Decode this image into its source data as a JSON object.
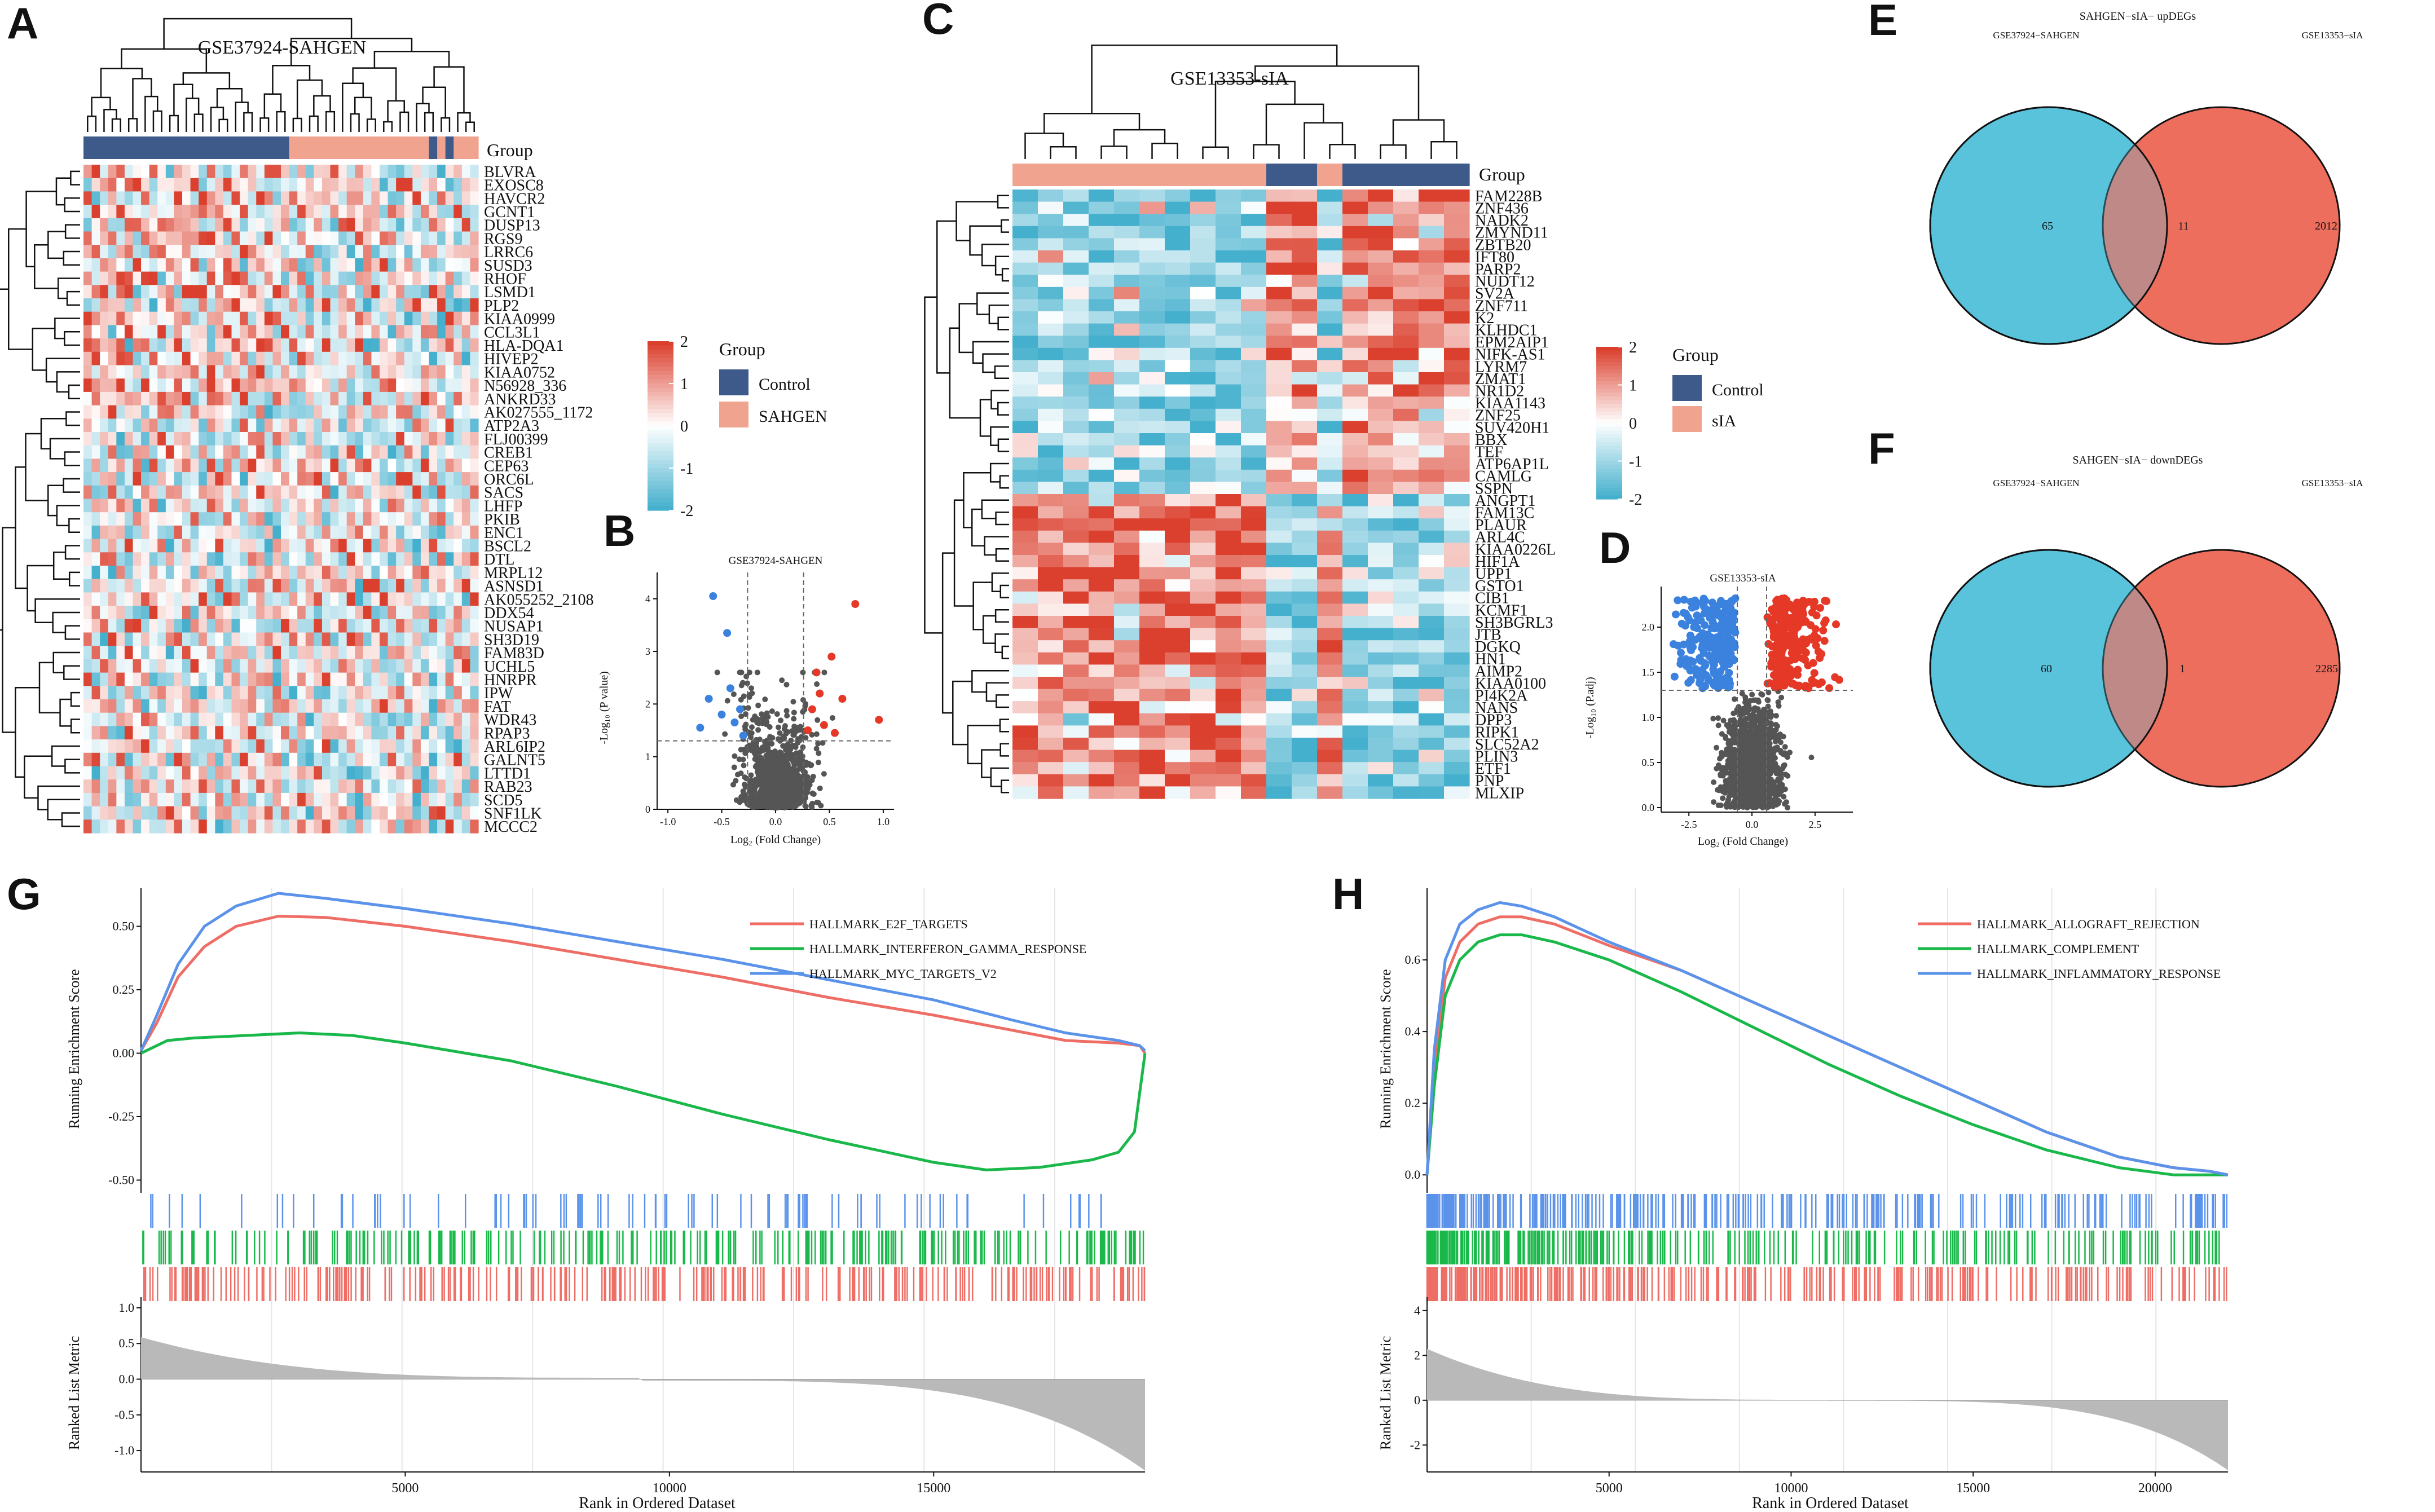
{
  "panels": {
    "A": "A",
    "B": "B",
    "C": "C",
    "D": "D",
    "E": "E",
    "F": "F",
    "G": "G",
    "H": "H"
  },
  "legend_group_title": "Group",
  "chart_data": [
    {
      "id": "A",
      "type": "heatmap",
      "title": "GSE37924-SAHGEN",
      "annotation_label": "Group",
      "columns": 48,
      "group_bar": [
        "Control",
        "Control",
        "Control",
        "Control",
        "Control",
        "Control",
        "Control",
        "Control",
        "Control",
        "Control",
        "Control",
        "Control",
        "Control",
        "Control",
        "Control",
        "Control",
        "Control",
        "Control",
        "Control",
        "Control",
        "Control",
        "Control",
        "Control",
        "Control",
        "Control",
        "SAHGEN",
        "SAHGEN",
        "SAHGEN",
        "SAHGEN",
        "SAHGEN",
        "SAHGEN",
        "SAHGEN",
        "SAHGEN",
        "SAHGEN",
        "SAHGEN",
        "SAHGEN",
        "SAHGEN",
        "SAHGEN",
        "SAHGEN",
        "SAHGEN",
        "SAHGEN",
        "SAHGEN",
        "Control",
        "SAHGEN",
        "Control",
        "SAHGEN",
        "SAHGEN",
        "SAHGEN"
      ],
      "rows": [
        "BLVRA",
        "EXOSC8",
        "HAVCR2",
        "GCNT1",
        "DUSP13",
        "RGS9",
        "LRRC6",
        "SUSD3",
        "RHOF",
        "LSMD1",
        "PLP2",
        "KIAA0999",
        "CCL3L1",
        "HLA-DQA1",
        "HIVEP2",
        "KIAA0752",
        "N56928_336",
        "ANKRD33",
        "AK027555_1172",
        "ATP2A3",
        "FLJ00399",
        "CREB1",
        "CEP63",
        "ORC6L",
        "SACS",
        "LHFP",
        "PKIB",
        "ENC1",
        "BSCL2",
        "DTL",
        "MRPL12",
        "ASNSD1",
        "AK055252_2108",
        "DDX54",
        "NUSAP1",
        "SH3D19",
        "FAM83D",
        "UCHL5",
        "HNRPR",
        "IPW",
        "FAT",
        "WDR43",
        "RPAP3",
        "ARL6IP2",
        "GALNT5",
        "LTTD1",
        "RAB23",
        "SCD5",
        "SNF1LK",
        "MCCC2"
      ],
      "legend_scale": {
        "min": -2,
        "max": 2,
        "ticks": [
          "2",
          "1",
          "0",
          "-1",
          "-2"
        ]
      },
      "legend_groups": [
        {
          "name": "Control",
          "color": "#3d5a8a"
        },
        {
          "name": "SAHGEN",
          "color": "#f0a490"
        }
      ]
    },
    {
      "id": "B",
      "type": "scatter",
      "title": "GSE37924-SAHGEN",
      "xlabel": "Log₂ (Fold Change)",
      "ylabel": "-Log₁₀ (P value)",
      "xlim": [
        -1.1,
        1.1
      ],
      "ylim": [
        0,
        4.5
      ],
      "x_ticks": [
        "-1.0",
        "-0.5",
        "0.0",
        "0.5",
        "1.0"
      ],
      "y_ticks": [
        "0",
        "1",
        "2",
        "3",
        "4"
      ],
      "cutoffs": {
        "x": [
          -0.26,
          0.26
        ],
        "y": 1.3
      },
      "highlight_up": [
        {
          "x": 0.74,
          "y": 3.9
        },
        {
          "x": 0.52,
          "y": 2.9
        },
        {
          "x": 0.38,
          "y": 2.6
        },
        {
          "x": 0.62,
          "y": 2.1
        },
        {
          "x": 0.96,
          "y": 1.7
        },
        {
          "x": 0.45,
          "y": 1.6
        },
        {
          "x": 0.3,
          "y": 1.5
        },
        {
          "x": 0.55,
          "y": 1.45
        },
        {
          "x": 0.34,
          "y": 1.9
        },
        {
          "x": 0.41,
          "y": 2.2
        }
      ],
      "highlight_down": [
        {
          "x": -0.58,
          "y": 4.05
        },
        {
          "x": -0.45,
          "y": 3.35
        },
        {
          "x": -0.62,
          "y": 2.1
        },
        {
          "x": -0.5,
          "y": 1.8
        },
        {
          "x": -0.38,
          "y": 1.65
        },
        {
          "x": -0.33,
          "y": 1.9
        },
        {
          "x": -0.7,
          "y": 1.55
        },
        {
          "x": -0.42,
          "y": 2.3
        },
        {
          "x": -0.3,
          "y": 1.4
        }
      ]
    },
    {
      "id": "C",
      "type": "heatmap",
      "title": "GSE13353-sIA",
      "annotation_label": "Group",
      "columns": 18,
      "group_bar": [
        "sIA",
        "sIA",
        "sIA",
        "sIA",
        "sIA",
        "sIA",
        "sIA",
        "sIA",
        "sIA",
        "sIA",
        "Control",
        "Control",
        "sIA",
        "Control",
        "Control",
        "Control",
        "Control",
        "Control"
      ],
      "rows": [
        "FAM228B",
        "ZNF436",
        "NADK2",
        "ZMYND11",
        "ZBTB20",
        "IFT80",
        "PARP2",
        "NUDT12",
        "SV2A",
        "ZNF711",
        "K2",
        "KLHDC1",
        "EPM2AIP1",
        "NIFK-AS1",
        "LYRM7",
        "ZMAT1",
        "NR1D2",
        "KIAA1143",
        "ZNF25",
        "SUV420H1",
        "BBX",
        "TEF",
        "ATP6AP1L",
        "CAMLG",
        "SSPN",
        "ANGPT1",
        "FAM13C",
        "PLAUR",
        "ARL4C",
        "KIAA0226L",
        "HIF1A",
        "UPP1",
        "GSTO1",
        "CIB1",
        "KCMF1",
        "SH3BGRL3",
        "JTB",
        "DGKQ",
        "HN1",
        "AIMP2",
        "KIAA0100",
        "PI4K2A",
        "NANS",
        "DPP3",
        "RIPK1",
        "SLC52A2",
        "PLIN3",
        "ETF1",
        "PNP",
        "MLXIP"
      ],
      "legend_scale": {
        "min": -2,
        "max": 2,
        "ticks": [
          "2",
          "1",
          "0",
          "-1",
          "-2"
        ]
      },
      "legend_groups": [
        {
          "name": "Control",
          "color": "#3d5a8a"
        },
        {
          "name": "sIA",
          "color": "#f0a490"
        }
      ]
    },
    {
      "id": "D",
      "type": "scatter",
      "title": "GSE13353-sIA",
      "xlabel": "Log₂ (Fold Change)",
      "ylabel": "-Log₁₀ (P.adj)",
      "xlim": [
        -3.6,
        4.0
      ],
      "ylim": [
        -0.05,
        2.45
      ],
      "x_ticks": [
        "-2.5",
        "0.0",
        "2.5"
      ],
      "x_tick_values": [
        -2.5,
        0,
        2.5
      ],
      "y_ticks": [
        "0.0",
        "0.5",
        "1.0",
        "1.5",
        "2.0"
      ],
      "cutoffs": {
        "x": [
          -0.58,
          0.58
        ],
        "y": 1.3
      }
    },
    {
      "id": "E",
      "type": "venn",
      "title": "SAHGEN−sIA− upDEGs",
      "left_label": "GSE37924−SAHGEN",
      "right_label": "GSE13353−sIA",
      "left_only": "65",
      "overlap": "11",
      "right_only": "2012",
      "left_color": "#5bc3dc",
      "right_color": "#ee6e5e"
    },
    {
      "id": "F",
      "type": "venn",
      "title": "SAHGEN−sIA− downDEGs",
      "left_label": "GSE37924−SAHGEN",
      "right_label": "GSE13353−sIA",
      "left_only": "60",
      "overlap": "1",
      "right_only": "2285",
      "left_color": "#5bc3dc",
      "right_color": "#ee6e5e"
    },
    {
      "id": "G",
      "type": "line",
      "title": "",
      "ylabel": "Running Enrichment Score",
      "ylabel2": "Ranked List Metric",
      "xlabel": "Rank in Ordered Dataset",
      "xlim": [
        0,
        19000
      ],
      "ylim": [
        -0.55,
        0.65
      ],
      "ylim2": [
        -1.3,
        1.15
      ],
      "x_ticks": [
        "5000",
        "10000",
        "15000"
      ],
      "x_tick_values": [
        5000,
        10000,
        15000
      ],
      "y_ticks": [
        "-0.50",
        "-0.25",
        "0.00",
        "0.25",
        "0.50"
      ],
      "y_tick_values": [
        -0.5,
        -0.25,
        0,
        0.25,
        0.5
      ],
      "y2_ticks": [
        "-1.0",
        "-0.5",
        "0.0",
        "0.5",
        "1.0"
      ],
      "y2_tick_values": [
        -1,
        -0.5,
        0,
        0.5,
        1
      ],
      "series": [
        {
          "name": "HALLMARK_E2F_TARGETS",
          "color": "#ee6e66",
          "x": [
            0,
            300,
            700,
            1200,
            1800,
            2600,
            3500,
            5000,
            7000,
            9000,
            11000,
            13000,
            15000,
            16500,
            17500,
            18500,
            18900,
            19000
          ],
          "y": [
            0.01,
            0.12,
            0.3,
            0.42,
            0.5,
            0.54,
            0.535,
            0.5,
            0.44,
            0.37,
            0.3,
            0.22,
            0.15,
            0.09,
            0.05,
            0.04,
            0.03,
            0.0
          ]
        },
        {
          "name": "HALLMARK_INTERFERON_GAMMA_RESPONSE",
          "color": "#1ab84a",
          "x": [
            0,
            500,
            1000,
            2000,
            3000,
            4000,
            5000,
            7000,
            9000,
            11000,
            13000,
            15000,
            16000,
            17000,
            18000,
            18500,
            18800,
            19000
          ],
          "y": [
            0.0,
            0.05,
            0.06,
            0.07,
            0.08,
            0.07,
            0.04,
            -0.03,
            -0.13,
            -0.24,
            -0.34,
            -0.43,
            -0.46,
            -0.45,
            -0.42,
            -0.39,
            -0.31,
            0.0
          ]
        },
        {
          "name": "HALLMARK_MYC_TARGETS_V2",
          "color": "#5b93ea",
          "x": [
            0,
            300,
            700,
            1200,
            1800,
            2600,
            3500,
            5000,
            7000,
            9000,
            11000,
            13000,
            15000,
            16500,
            17500,
            18500,
            18900,
            19000
          ],
          "y": [
            0.01,
            0.15,
            0.35,
            0.5,
            0.58,
            0.63,
            0.61,
            0.57,
            0.51,
            0.44,
            0.37,
            0.29,
            0.21,
            0.13,
            0.08,
            0.05,
            0.03,
            0.01
          ]
        }
      ]
    },
    {
      "id": "H",
      "type": "line",
      "title": "",
      "ylabel": "Running Enrichment Score",
      "ylabel2": "Ranked List Metric",
      "xlabel": "Rank in Ordered Dataset",
      "xlim": [
        0,
        22000
      ],
      "ylim": [
        -0.05,
        0.8
      ],
      "ylim2": [
        -3.2,
        4.6
      ],
      "x_ticks": [
        "5000",
        "10000",
        "15000",
        "20000"
      ],
      "x_tick_values": [
        5000,
        10000,
        15000,
        20000
      ],
      "y_ticks": [
        "0.0",
        "0.2",
        "0.4",
        "0.6"
      ],
      "y_tick_values": [
        0,
        0.2,
        0.4,
        0.6
      ],
      "y2_ticks": [
        "-2",
        "0",
        "2",
        "4"
      ],
      "y2_tick_values": [
        -2,
        0,
        2,
        4
      ],
      "series": [
        {
          "name": "HALLMARK_ALLOGRAFT_REJECTION",
          "color": "#ee6e66",
          "x": [
            0,
            200,
            500,
            900,
            1400,
            2000,
            2600,
            3500,
            5000,
            7000,
            9000,
            11000,
            13000,
            15000,
            17000,
            19000,
            20500,
            21500,
            22000
          ],
          "y": [
            0.0,
            0.3,
            0.55,
            0.65,
            0.7,
            0.72,
            0.72,
            0.7,
            0.64,
            0.57,
            0.48,
            0.39,
            0.3,
            0.21,
            0.12,
            0.05,
            0.02,
            0.01,
            0.0
          ]
        },
        {
          "name": "HALLMARK_COMPLEMENT",
          "color": "#1ab84a",
          "x": [
            0,
            200,
            500,
            900,
            1400,
            2000,
            2600,
            3500,
            5000,
            7000,
            9000,
            11000,
            13000,
            15000,
            17000,
            19000,
            20500,
            21500,
            22000
          ],
          "y": [
            0.0,
            0.25,
            0.5,
            0.6,
            0.65,
            0.67,
            0.67,
            0.65,
            0.6,
            0.51,
            0.41,
            0.31,
            0.22,
            0.14,
            0.07,
            0.02,
            0.0,
            0.0,
            0.0
          ]
        },
        {
          "name": "HALLMARK_INFLAMMATORY_RESPONSE",
          "color": "#5b93ea",
          "x": [
            0,
            200,
            500,
            900,
            1400,
            2000,
            2600,
            3500,
            5000,
            7000,
            9000,
            11000,
            13000,
            15000,
            17000,
            19000,
            20500,
            21500,
            22000
          ],
          "y": [
            0.0,
            0.35,
            0.6,
            0.7,
            0.74,
            0.76,
            0.75,
            0.72,
            0.65,
            0.57,
            0.48,
            0.39,
            0.3,
            0.21,
            0.12,
            0.05,
            0.02,
            0.01,
            0.0
          ]
        }
      ]
    }
  ]
}
